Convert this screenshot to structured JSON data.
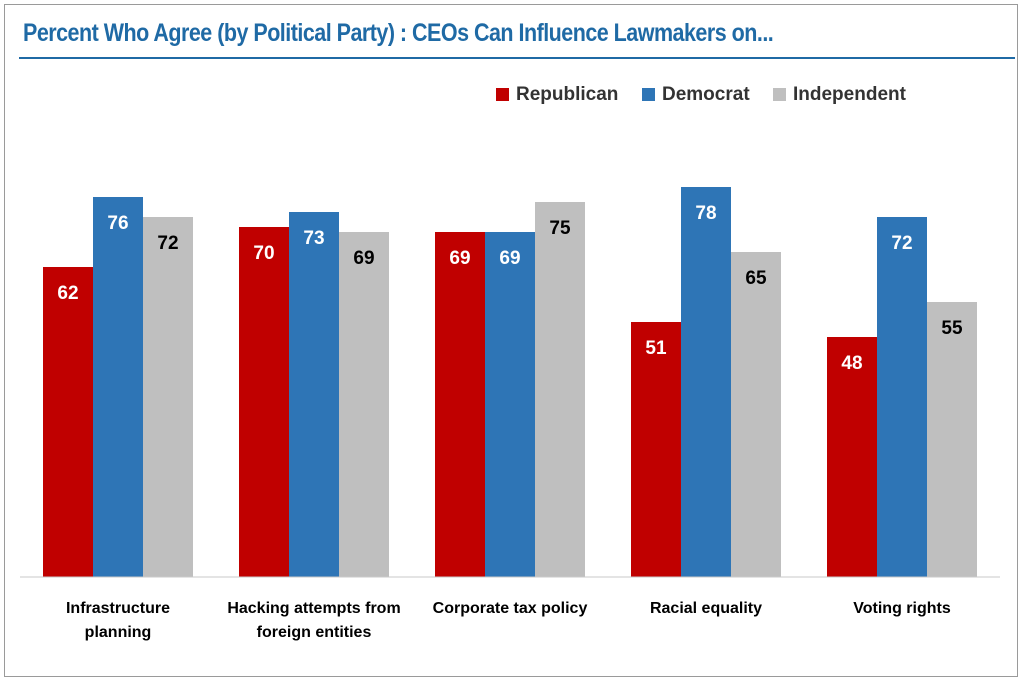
{
  "title": "Percent Who Agree (by Political Party) : CEOs Can Influence Lawmakers on...",
  "colors": {
    "title": "#1f6aa5",
    "Republican": "#c00000",
    "Democrat": "#2e75b6",
    "Independent": "#bfbfbf"
  },
  "chart_data": {
    "type": "bar",
    "title": "Percent Who Agree (by Political Party) : CEOs Can Influence Lawmakers on...",
    "xlabel": "",
    "ylabel": "",
    "ylim": [
      0,
      100
    ],
    "grid": false,
    "legend": "top-right",
    "categories": [
      "Infrastructure planning",
      "Hacking attempts from foreign entities",
      "Corporate tax policy",
      "Racial equality",
      "Voting rights"
    ],
    "series": [
      {
        "name": "Republican",
        "values": [
          62,
          70,
          69,
          51,
          48
        ]
      },
      {
        "name": "Democrat",
        "values": [
          76,
          73,
          69,
          78,
          72
        ]
      },
      {
        "name": "Independent",
        "values": [
          72,
          69,
          75,
          65,
          55
        ]
      }
    ]
  }
}
